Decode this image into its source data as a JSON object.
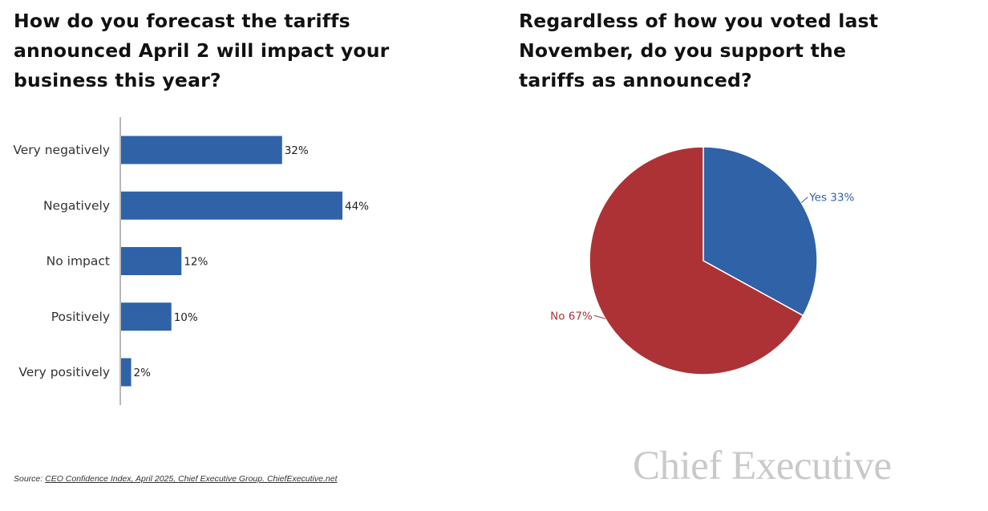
{
  "colors": {
    "blue": "#2f62a7",
    "red": "#ad3236",
    "axis": "#888888",
    "text": "#333333"
  },
  "chart_data": [
    {
      "type": "bar",
      "orientation": "horizontal",
      "title": "How do you forecast the tariffs announced April 2 will impact your business this year?",
      "categories": [
        "Very negatively",
        "Negatively",
        "No impact",
        "Positively",
        "Very positively"
      ],
      "values": [
        32,
        44,
        12,
        10,
        2
      ],
      "value_labels": [
        "32%",
        "44%",
        "12%",
        "10%",
        "2%"
      ],
      "unit": "%",
      "xlim": [
        0,
        50
      ],
      "grid": false
    },
    {
      "type": "pie",
      "title": "Regardless of how you voted last November, do you support the tariffs as announced?",
      "slices": [
        {
          "name": "Yes",
          "value": 33,
          "label": "Yes 33%"
        },
        {
          "name": "No",
          "value": 67,
          "label": "No 67%"
        }
      ],
      "unit": "%"
    }
  ],
  "source": {
    "prefix": "Source: ",
    "text": "CEO Confidence Index, April 2025, Chief Executive Group. ChiefExecutive.net"
  },
  "logo": {
    "text": "Chief Executive"
  }
}
